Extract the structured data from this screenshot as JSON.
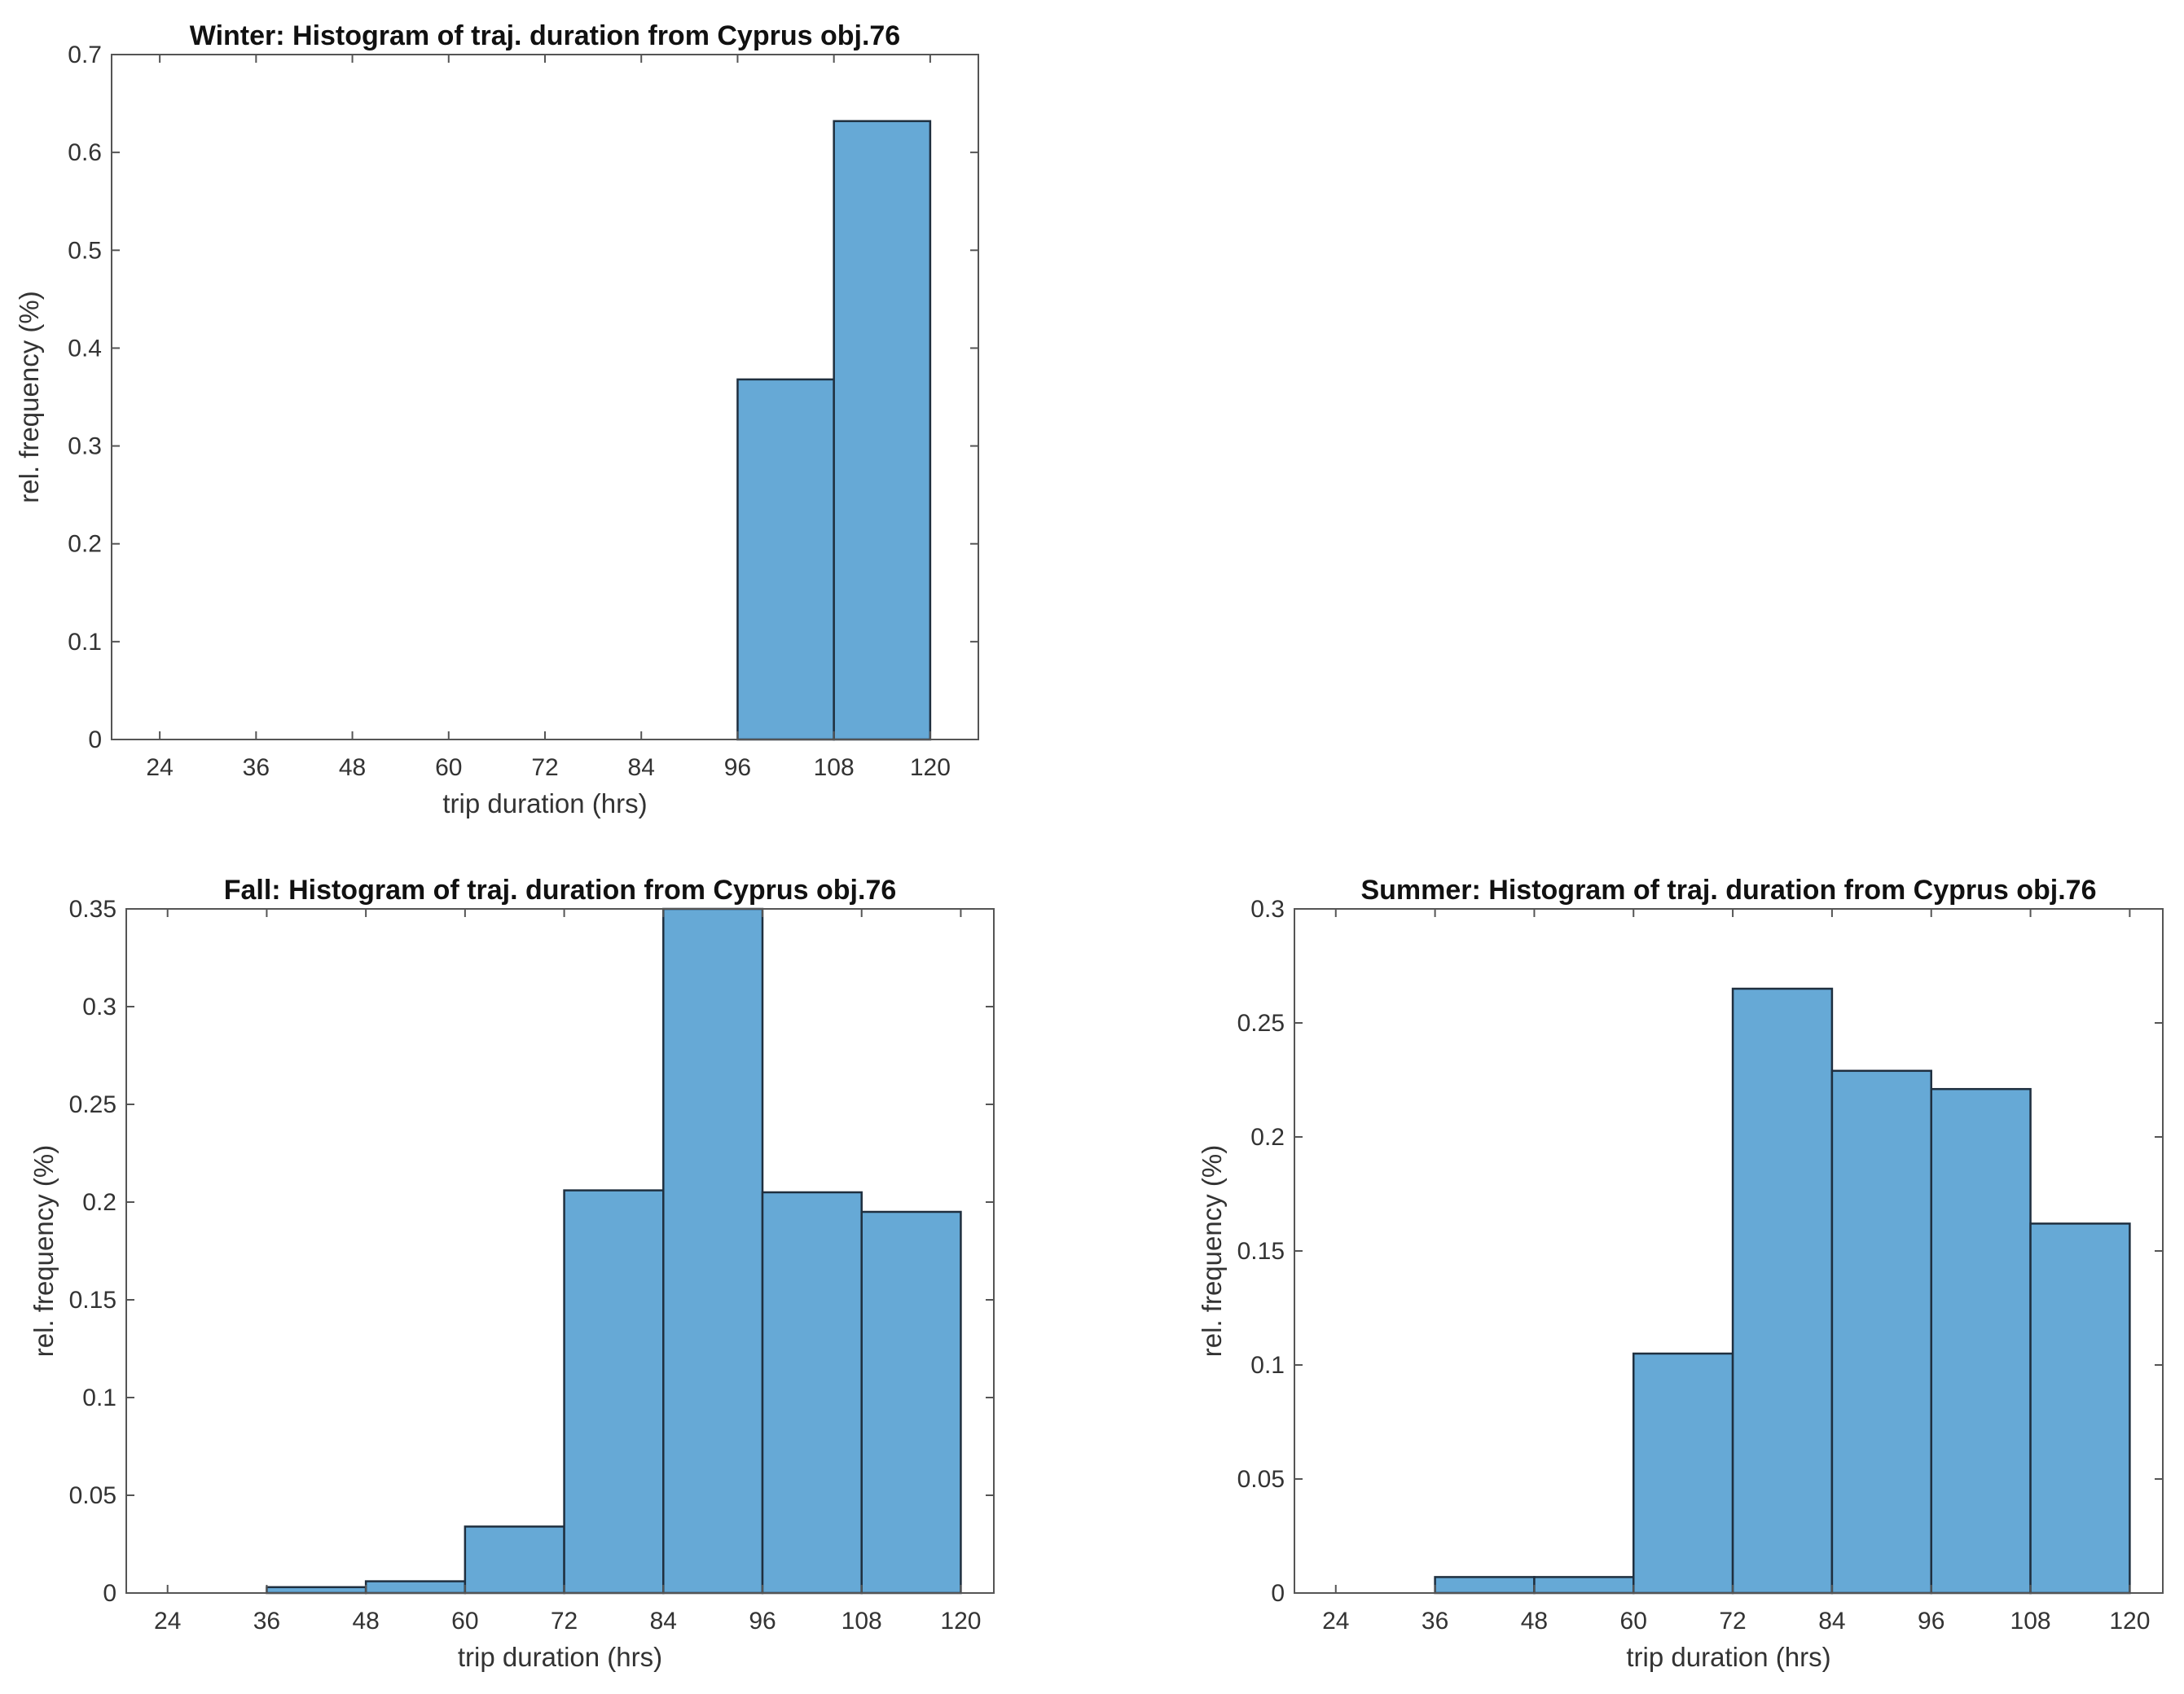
{
  "chart_data": [
    {
      "type": "bar",
      "title": "Winter: Histogram of traj. duration from Cyprus obj.76",
      "xlabel": "trip duration (hrs)",
      "ylabel": "rel. frequency (%)",
      "xlim": [
        18,
        126
      ],
      "ylim": [
        0,
        0.7
      ],
      "xticks": [
        24,
        36,
        48,
        60,
        72,
        84,
        96,
        108,
        120
      ],
      "xtick_labels": [
        "24",
        "36",
        "48",
        "60",
        "72",
        "84",
        "96",
        "108",
        "120"
      ],
      "yticks": [
        0,
        0.1,
        0.2,
        0.3,
        0.4,
        0.5,
        0.6,
        0.7
      ],
      "ytick_labels": [
        "0",
        "0.1",
        "0.2",
        "0.3",
        "0.4",
        "0.5",
        "0.6",
        "0.7"
      ],
      "bins": [
        [
          96,
          108
        ],
        [
          108,
          120
        ]
      ],
      "values": [
        0.368,
        0.632
      ],
      "color": "#66a9d6"
    },
    {
      "type": "bar",
      "title": "Fall: Histogram of traj. duration from Cyprus obj.76",
      "xlabel": "trip duration (hrs)",
      "ylabel": "rel. frequency (%)",
      "xlim": [
        19,
        124
      ],
      "ylim": [
        0,
        0.35
      ],
      "xticks": [
        24,
        36,
        48,
        60,
        72,
        84,
        96,
        108,
        120
      ],
      "xtick_labels": [
        "24",
        "36",
        "48",
        "60",
        "72",
        "84",
        "96",
        "108",
        "120"
      ],
      "yticks": [
        0,
        0.05,
        0.1,
        0.15,
        0.2,
        0.25,
        0.3,
        0.35
      ],
      "ytick_labels": [
        "0",
        "0.05",
        "0.1",
        "0.15",
        "0.2",
        "0.25",
        "0.3",
        "0.35"
      ],
      "bins": [
        [
          36,
          48
        ],
        [
          48,
          60
        ],
        [
          60,
          72
        ],
        [
          72,
          84
        ],
        [
          84,
          96
        ],
        [
          96,
          108
        ],
        [
          108,
          120
        ]
      ],
      "values": [
        0.003,
        0.006,
        0.034,
        0.206,
        0.35,
        0.205,
        0.195
      ],
      "color": "#66a9d6"
    },
    {
      "type": "bar",
      "title": "Summer: Histogram of traj. duration from Cyprus obj.76",
      "xlabel": "trip duration (hrs)",
      "ylabel": "rel. frequency (%)",
      "xlim": [
        19,
        124
      ],
      "ylim": [
        0,
        0.3
      ],
      "xticks": [
        24,
        36,
        48,
        60,
        72,
        84,
        96,
        108,
        120
      ],
      "xtick_labels": [
        "24",
        "36",
        "48",
        "60",
        "72",
        "84",
        "96",
        "108",
        "120"
      ],
      "yticks": [
        0,
        0.05,
        0.1,
        0.15,
        0.2,
        0.25,
        0.3
      ],
      "ytick_labels": [
        "0",
        "0.05",
        "0.1",
        "0.15",
        "0.2",
        "0.25",
        "0.3"
      ],
      "bins": [
        [
          36,
          48
        ],
        [
          48,
          60
        ],
        [
          60,
          72
        ],
        [
          72,
          84
        ],
        [
          84,
          96
        ],
        [
          96,
          108
        ],
        [
          108,
          120
        ]
      ],
      "values": [
        0.007,
        0.007,
        0.105,
        0.265,
        0.229,
        0.221,
        0.162
      ],
      "color": "#66a9d6"
    }
  ]
}
